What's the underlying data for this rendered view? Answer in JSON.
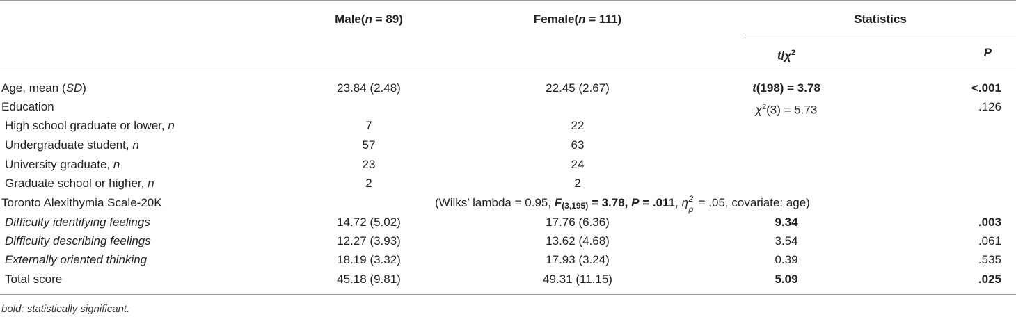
{
  "header": {
    "male_label": "Male",
    "male_n_prefix": "n",
    "male_n_value": " = 89)",
    "female_label": "Female",
    "female_n_prefix": "n",
    "female_n_value": " = 111)",
    "statistics_label": "Statistics",
    "t_label": "t",
    "chi_label": "χ",
    "p_label": "P"
  },
  "rows": [
    {
      "label_pre": "Age, mean (",
      "label_ital": "SD",
      "label_post": ")",
      "male": "23.84 (2.48)",
      "female": "22.45 (2.67)",
      "stat": "t(198) = 3.78",
      "p": "<.001"
    },
    {
      "label": "Education",
      "stat": "χ²(3) = 5.73",
      "p": ".126"
    },
    {
      "label": "High school graduate or lower, ",
      "label_n": "n",
      "male": "7",
      "female": "22"
    },
    {
      "label": "Undergraduate student, ",
      "label_n": "n",
      "male": "57",
      "female": "63"
    },
    {
      "label": "University graduate, ",
      "label_n": "n",
      "male": "23",
      "female": "24"
    },
    {
      "label": "Graduate school or higher, ",
      "label_n": "n",
      "male": "2",
      "female": "2"
    },
    {
      "label": "Toronto Alexithymia Scale-20K"
    },
    {
      "label": "Difficulty identifying feelings",
      "male": "14.72 (5.02)",
      "female": "17.76 (6.36)",
      "stat": "9.34",
      "p": ".003"
    },
    {
      "label": "Difficulty describing feelings",
      "male": "12.27 (3.93)",
      "female": "13.62 (4.68)",
      "stat": "3.54",
      "p": ".061"
    },
    {
      "label": "Externally oriented thinking",
      "male": "18.19 (3.32)",
      "female": "17.93 (3.24)",
      "stat": "0.39",
      "p": ".535"
    },
    {
      "label": "Total score",
      "male": "45.18 (9.81)",
      "female": "49.31 (11.15)",
      "stat": "5.09",
      "p": ".025"
    }
  ],
  "tas_stats": {
    "open": "(Wilks’ lambda = 0.95, ",
    "f_letter": "F",
    "f_sub": "(3,195)",
    "f_value": " = 3.78, ",
    "p_letter": "P",
    "p_value": " = .011",
    "sep": ", ",
    "eta": "η",
    "eta_sup": "2",
    "eta_sub": "p",
    "eta_value": " = .05, covariate: age)"
  },
  "footnote": "bold: statistically significant."
}
